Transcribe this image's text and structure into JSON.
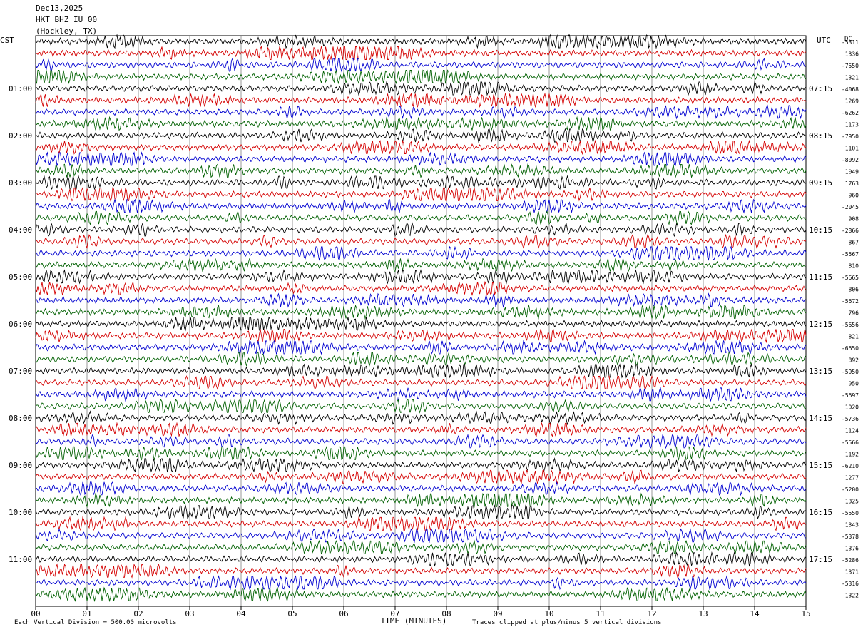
{
  "header": {
    "date": "Dec13,2025",
    "station": "HKT BHZ IU 00",
    "location": "(Hockley, TX)",
    "left_tz": "CST",
    "right_tz": "UTC",
    "right_col_head": "DC"
  },
  "chart_data": {
    "type": "line",
    "title": "",
    "xlabel": "TIME (MINUTES)",
    "ylabel": "",
    "x_ticks": [
      "00",
      "01",
      "02",
      "03",
      "04",
      "05",
      "06",
      "07",
      "08",
      "09",
      "10",
      "11",
      "12",
      "13",
      "14",
      "15"
    ],
    "xlim": [
      0,
      15
    ],
    "grid": true,
    "trace_colors": [
      "#000000",
      "#d40000",
      "#0000d0",
      "#006000"
    ],
    "left_time_labels": [
      "01:00",
      "02:00",
      "03:00",
      "04:00",
      "05:00",
      "06:00",
      "07:00",
      "08:00",
      "09:00",
      "10:00",
      "11:00"
    ],
    "right_time_labels": [
      "07:15",
      "08:15",
      "09:15",
      "10:15",
      "11:15",
      "12:15",
      "13:15",
      "14:15",
      "15:15",
      "16:15",
      "17:15"
    ],
    "dc_offsets": [
      "-5311",
      "1336",
      "-7550",
      "1321",
      "-4068",
      "1269",
      "-6262",
      "1173",
      "-7950",
      "1101",
      "-8092",
      "1049",
      "1763",
      "960",
      "-2045",
      "908",
      "-2866",
      "867",
      "-5567",
      "810",
      "-5665",
      "806",
      "-5672",
      "796",
      "-5656",
      "821",
      "-6650",
      "892",
      "-5950",
      "950",
      "-5697",
      "1020",
      "-5736",
      "1124",
      "-5566",
      "1192",
      "-6210",
      "1277",
      "-5200",
      "1325",
      "-5550",
      "1343",
      "-5378",
      "1376",
      "-5286",
      "1371",
      "-5316",
      "1322"
    ],
    "footer_left": "Each Vertical Division =   500.00 microvolts",
    "footer_right": "Traces clipped at plus/minus 5 vertical divisions"
  }
}
